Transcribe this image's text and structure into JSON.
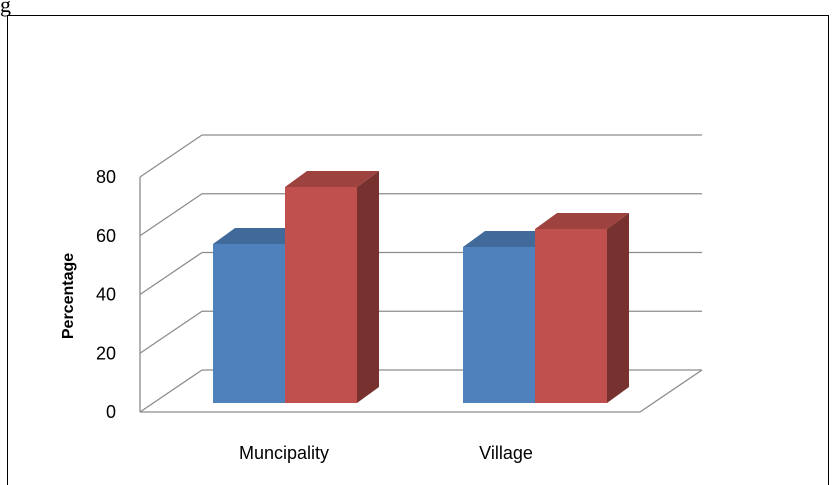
{
  "figure": {
    "caption": "g"
  },
  "chart_data": {
    "type": "bar",
    "style": "3d-clustered-column",
    "categories": [
      "Muncipality",
      "Village"
    ],
    "series": [
      {
        "color": "#4F81BD",
        "values": [
          53,
          52
        ]
      },
      {
        "color": "#C0504D",
        "values": [
          72,
          58
        ]
      }
    ],
    "ylabel": "Percentage",
    "xlabel": "",
    "ylim": [
      0,
      80
    ],
    "yticks": [
      0,
      20,
      40,
      60,
      80
    ],
    "grid": true,
    "legend": "none"
  }
}
